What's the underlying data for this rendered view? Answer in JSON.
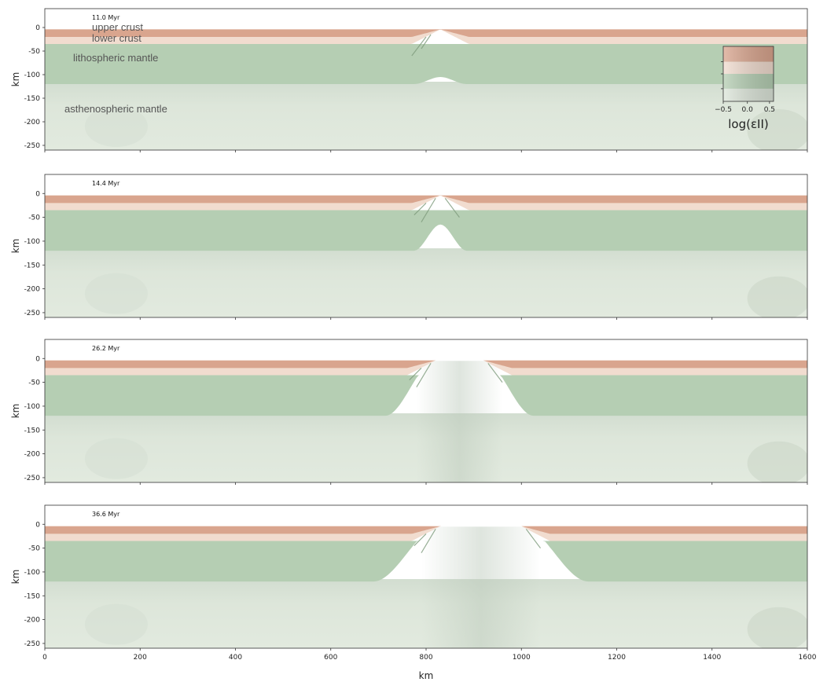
{
  "chart_data": [
    {
      "type": "area",
      "time_label": "11.0 Myr",
      "ylabel": "km",
      "xlim": [
        0,
        1600
      ],
      "ylim": [
        -260,
        40
      ],
      "yticks": [
        "0",
        "-50",
        "-100",
        "-150",
        "-200",
        "-250"
      ],
      "x_tick_labels_shown": false,
      "layer_labels": [
        "upper crust",
        "lower crust",
        "lithospheric mantle",
        "asthenospheric mantle"
      ],
      "rift_center_km": 830,
      "rift_opening_km": [
        830,
        830
      ],
      "lab_uplift_km": 15,
      "colorbar": {
        "ticks": [
          "−0.5",
          "0.0",
          "0.5"
        ],
        "title": "log(εII)"
      }
    },
    {
      "type": "area",
      "time_label": "14.4 Myr",
      "ylabel": "km",
      "xlim": [
        0,
        1600
      ],
      "ylim": [
        -260,
        40
      ],
      "yticks": [
        "0",
        "-50",
        "-100",
        "-150",
        "-200",
        "-250"
      ],
      "x_tick_labels_shown": false,
      "rift_center_km": 830,
      "rift_opening_km": [
        830,
        830
      ],
      "lab_uplift_km": 55
    },
    {
      "type": "area",
      "time_label": "26.2 Myr",
      "ylabel": "km",
      "xlim": [
        0,
        1600
      ],
      "ylim": [
        -260,
        40
      ],
      "yticks": [
        "0",
        "-50",
        "-100",
        "-150",
        "-200",
        "-250"
      ],
      "x_tick_labels_shown": false,
      "rift_center_km": 870,
      "rift_opening_km": [
        820,
        920
      ],
      "lab_uplift_km": 118
    },
    {
      "type": "area",
      "time_label": "36.6 Myr",
      "ylabel": "km",
      "xlabel": "km",
      "xlim": [
        0,
        1600
      ],
      "ylim": [
        -260,
        40
      ],
      "yticks": [
        "0",
        "-50",
        "-100",
        "-150",
        "-200",
        "-250"
      ],
      "xticks": [
        "0",
        "200",
        "400",
        "600",
        "800",
        "1000",
        "1200",
        "1400",
        "1600"
      ],
      "x_tick_labels_shown": true,
      "rift_center_km": 915,
      "rift_opening_km": [
        830,
        1000
      ],
      "lab_uplift_km": 118
    }
  ],
  "layer_depths_km": {
    "upper_crust_bottom": -20,
    "lower_crust_bottom": -35,
    "lithosphere_bottom": -120,
    "model_bottom": -260
  },
  "colors": {
    "upper_crust": "#d9a58e",
    "lower_crust": "#f1dccf",
    "lithospheric_mantle": "#b5ceb3",
    "asthenospheric_mantle": "#dde6da",
    "shear_zone": "#7f9c7d",
    "axis": "#333333"
  }
}
